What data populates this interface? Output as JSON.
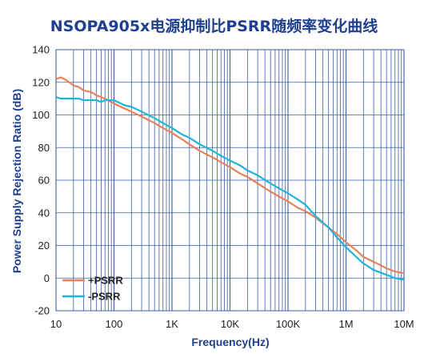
{
  "chart_data": {
    "type": "line",
    "title": "NSOPA905x电源抑制比PSRR随频率变化曲线",
    "xlabel": "Frequency(Hz)",
    "ylabel": "Power Supply Rejection Ratio (dB)",
    "x_scale": "log",
    "xlim": [
      10,
      10000000
    ],
    "ylim": [
      -20,
      140
    ],
    "x_ticks": [
      {
        "value": 10,
        "label": "10"
      },
      {
        "value": 100,
        "label": "100"
      },
      {
        "value": 1000,
        "label": "1K"
      },
      {
        "value": 10000,
        "label": "10K"
      },
      {
        "value": 100000,
        "label": "100K"
      },
      {
        "value": 1000000,
        "label": "1M"
      },
      {
        "value": 10000000,
        "label": "10M"
      }
    ],
    "y_ticks": [
      -20,
      0,
      20,
      40,
      60,
      80,
      100,
      120,
      140
    ],
    "grid": true,
    "legend_position": "bottom-left",
    "series": [
      {
        "name": "+PSRR",
        "color": "#e8825a",
        "points": [
          [
            10,
            122
          ],
          [
            12,
            123
          ],
          [
            14,
            122
          ],
          [
            17,
            120
          ],
          [
            20,
            118
          ],
          [
            25,
            117
          ],
          [
            30,
            115
          ],
          [
            40,
            114
          ],
          [
            50,
            112
          ],
          [
            70,
            110
          ],
          [
            100,
            107
          ],
          [
            150,
            104
          ],
          [
            200,
            102
          ],
          [
            300,
            99
          ],
          [
            500,
            95
          ],
          [
            700,
            92
          ],
          [
            1000,
            89
          ],
          [
            1500,
            85
          ],
          [
            2000,
            82
          ],
          [
            3000,
            78
          ],
          [
            5000,
            74
          ],
          [
            7000,
            71
          ],
          [
            10000,
            68
          ],
          [
            15000,
            64
          ],
          [
            20000,
            62
          ],
          [
            30000,
            58
          ],
          [
            50000,
            53
          ],
          [
            70000,
            50
          ],
          [
            100000,
            47
          ],
          [
            150000,
            43
          ],
          [
            200000,
            41
          ],
          [
            300000,
            37
          ],
          [
            500000,
            31
          ],
          [
            700000,
            27
          ],
          [
            1000000,
            22
          ],
          [
            1500000,
            17
          ],
          [
            2000000,
            13
          ],
          [
            3000000,
            10
          ],
          [
            5000000,
            6
          ],
          [
            7000000,
            4
          ],
          [
            10000000,
            3
          ]
        ]
      },
      {
        "name": "-PSRR",
        "color": "#1fb4d9",
        "points": [
          [
            10,
            111
          ],
          [
            12,
            110
          ],
          [
            15,
            110
          ],
          [
            20,
            110
          ],
          [
            25,
            110
          ],
          [
            30,
            109
          ],
          [
            40,
            109
          ],
          [
            50,
            109
          ],
          [
            60,
            108
          ],
          [
            70,
            109
          ],
          [
            100,
            109
          ],
          [
            150,
            106
          ],
          [
            200,
            105
          ],
          [
            300,
            102
          ],
          [
            500,
            98
          ],
          [
            700,
            95
          ],
          [
            1000,
            92
          ],
          [
            1500,
            88
          ],
          [
            2000,
            86
          ],
          [
            3000,
            82
          ],
          [
            5000,
            78
          ],
          [
            7000,
            75
          ],
          [
            10000,
            72
          ],
          [
            15000,
            69
          ],
          [
            20000,
            66
          ],
          [
            30000,
            63
          ],
          [
            50000,
            58
          ],
          [
            70000,
            55
          ],
          [
            100000,
            52
          ],
          [
            150000,
            48
          ],
          [
            200000,
            45
          ],
          [
            300000,
            38
          ],
          [
            500000,
            31
          ],
          [
            700000,
            25
          ],
          [
            1000000,
            19
          ],
          [
            1500000,
            13
          ],
          [
            2000000,
            9
          ],
          [
            3000000,
            5
          ],
          [
            5000000,
            2
          ],
          [
            7000000,
            0
          ],
          [
            10000000,
            -1
          ]
        ]
      }
    ]
  }
}
